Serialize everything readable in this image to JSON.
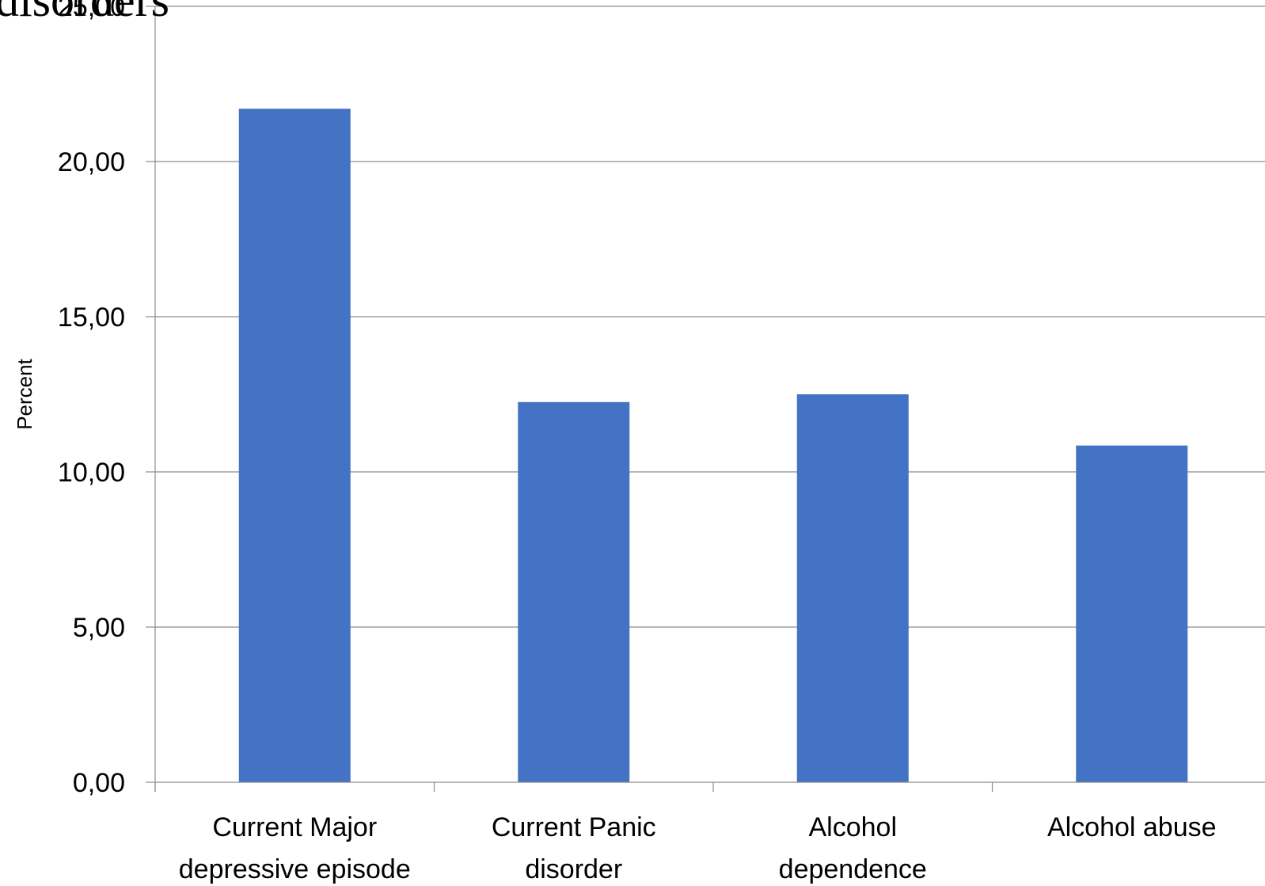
{
  "chart_data": {
    "type": "bar",
    "title": "disorders",
    "categories": [
      [
        "Current Major",
        "depressive episode"
      ],
      [
        "Current Panic",
        "disorder"
      ],
      [
        "Alcohol",
        "dependence"
      ],
      [
        "Alcohol abuse"
      ]
    ],
    "category_names": [
      "Current Major depressive episode",
      "Current Panic disorder",
      "Alcohol dependence",
      "Alcohol abuse"
    ],
    "values": [
      21.7,
      12.25,
      12.5,
      10.85
    ],
    "ylabel": "Percent",
    "xlabel": "",
    "ylim": [
      0,
      25
    ],
    "yticks": [
      0,
      5,
      10,
      15,
      20,
      25
    ],
    "ytick_labels": [
      "0,00",
      "5,00",
      "10,00",
      "15,00",
      "20,00",
      "25,00"
    ],
    "grid": true,
    "legend": "none",
    "colors": {
      "bar": "#4472C4",
      "grid": "#8c8c8c",
      "axis": "#8c8c8c",
      "text": "#000000"
    }
  }
}
